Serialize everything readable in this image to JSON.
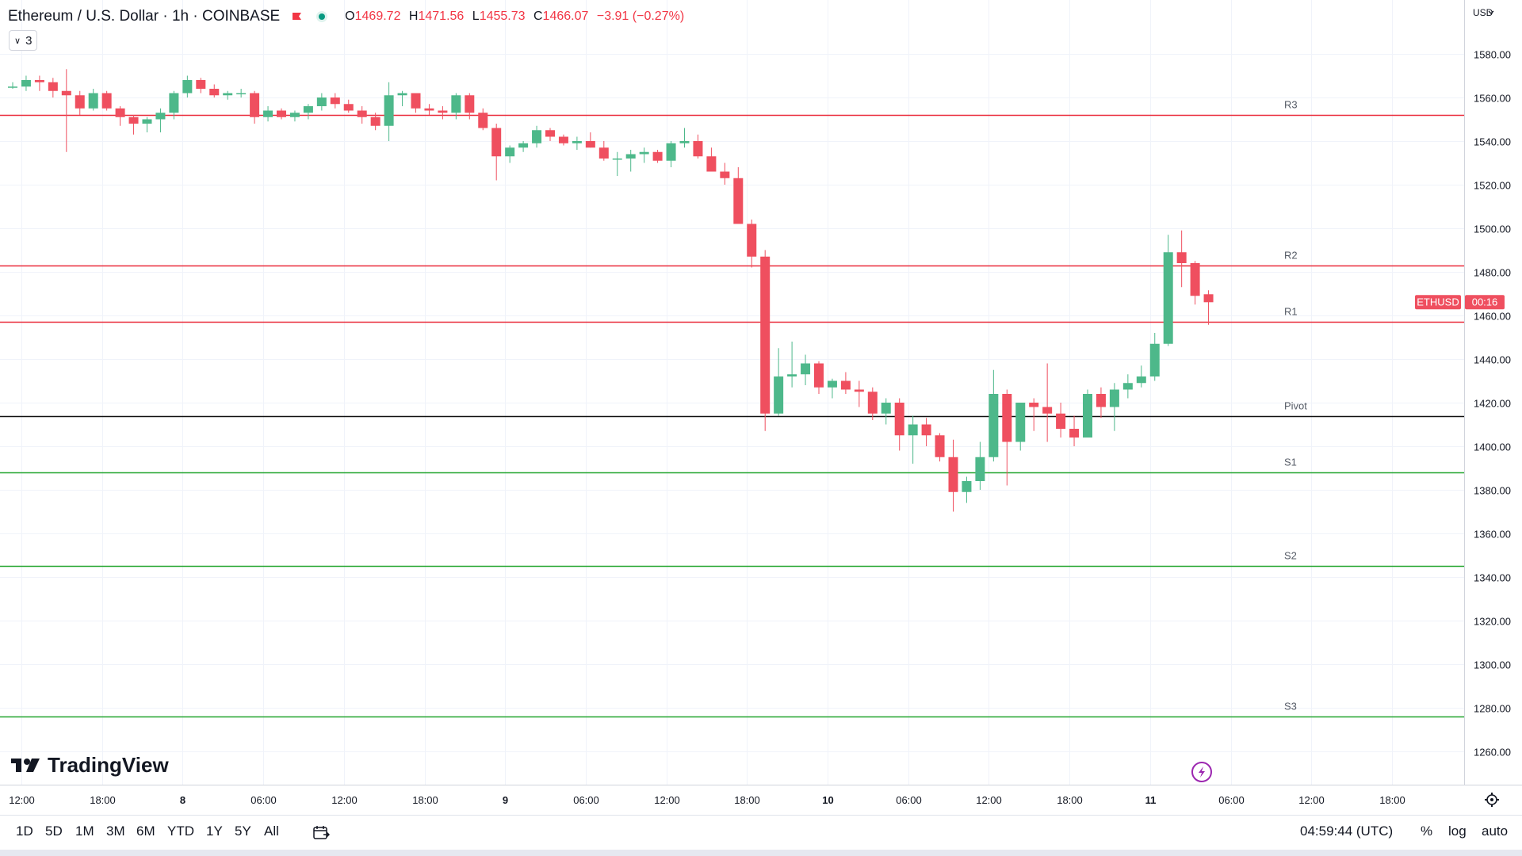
{
  "header": {
    "symbol": "Ethereum / U.S. Dollar · 1h · COINBASE",
    "open_label": "O",
    "open": "1469.72",
    "high_label": "H",
    "high": "1471.56",
    "low_label": "L",
    "low": "1455.73",
    "close_label": "C",
    "close": "1466.07",
    "change": "−3.91 (−0.27%)"
  },
  "indicator_badge": {
    "count": "3"
  },
  "price_scale": {
    "currency": "USD"
  },
  "last_price_tag": {
    "symbol": "ETHUSD",
    "countdown": "00:16"
  },
  "logo": {
    "text": "TradingView"
  },
  "bottom_bar": {
    "ranges": [
      "1D",
      "5D",
      "1M",
      "3M",
      "6M",
      "YTD",
      "1Y",
      "5Y",
      "All"
    ],
    "clock": "04:59:44 (UTC)",
    "percent": "%",
    "log": "log",
    "auto": "auto"
  },
  "colors": {
    "up": "#4db88a",
    "down": "#ef4f5f",
    "resistance": "#ea2a3a",
    "support": "#22a52e",
    "pivot": "#111111"
  },
  "chart_data": {
    "type": "candlestick",
    "timeframe": "1h",
    "y_ticks": [
      1580,
      1560,
      1540,
      1520,
      1500,
      1480,
      1460,
      1440,
      1420,
      1400,
      1380,
      1360,
      1340,
      1320,
      1300,
      1280,
      1260
    ],
    "y_tick_labels": [
      "1580.00",
      "1560.00",
      "1540.00",
      "1520.00",
      "1500.00",
      "1480.00",
      "1460.00",
      "1440.00",
      "1420.00",
      "1400.00",
      "1380.00",
      "1360.00",
      "1340.00",
      "1320.00",
      "1300.00",
      "1280.00",
      "1260.00"
    ],
    "ylim": [
      1250,
      1592
    ],
    "x_tick_labels": [
      "12:00",
      "18:00",
      "8",
      "06:00",
      "12:00",
      "18:00",
      "9",
      "06:00",
      "12:00",
      "18:00",
      "10",
      "06:00",
      "12:00",
      "18:00",
      "11",
      "06:00",
      "12:00",
      "18:00"
    ],
    "x_tick_bold": [
      false,
      false,
      true,
      false,
      false,
      false,
      true,
      false,
      false,
      false,
      true,
      false,
      false,
      false,
      true,
      false,
      false,
      false
    ],
    "x_tick_bar_index": [
      0,
      6,
      12,
      18,
      24,
      30,
      36,
      42,
      48,
      54,
      60,
      66,
      72,
      78,
      84,
      90,
      96,
      102
    ],
    "levels": [
      {
        "label": "R3",
        "value": 1552,
        "kind": "resistance"
      },
      {
        "label": "R2",
        "value": 1483,
        "kind": "resistance"
      },
      {
        "label": "R1",
        "value": 1457,
        "kind": "resistance"
      },
      {
        "label": "Pivot",
        "value": 1414,
        "kind": "pivot"
      },
      {
        "label": "S1",
        "value": 1388,
        "kind": "support"
      },
      {
        "label": "S2",
        "value": 1345,
        "kind": "support"
      },
      {
        "label": "S3",
        "value": 1276,
        "kind": "support"
      }
    ],
    "last_price": 1466.07,
    "candles": [
      [
        1565,
        1567,
        1564,
        1565
      ],
      [
        1565,
        1570,
        1563,
        1568
      ],
      [
        1568,
        1570,
        1563,
        1567
      ],
      [
        1567,
        1569,
        1560,
        1563
      ],
      [
        1563,
        1573,
        1535,
        1561
      ],
      [
        1561,
        1563,
        1552,
        1555
      ],
      [
        1555,
        1564,
        1554,
        1562
      ],
      [
        1562,
        1563,
        1554,
        1555
      ],
      [
        1555,
        1556,
        1547,
        1551
      ],
      [
        1551,
        1552,
        1543,
        1548
      ],
      [
        1548,
        1551,
        1544,
        1550
      ],
      [
        1550,
        1555,
        1544,
        1553
      ],
      [
        1553,
        1563,
        1550,
        1562
      ],
      [
        1562,
        1570,
        1560,
        1568
      ],
      [
        1568,
        1569,
        1562,
        1564
      ],
      [
        1564,
        1566,
        1560,
        1561
      ],
      [
        1561,
        1563,
        1559,
        1562
      ],
      [
        1562,
        1564,
        1560,
        1562
      ],
      [
        1562,
        1563,
        1548,
        1551
      ],
      [
        1551,
        1556,
        1549,
        1554
      ],
      [
        1554,
        1555,
        1550,
        1551
      ],
      [
        1551,
        1554,
        1549,
        1553
      ],
      [
        1553,
        1557,
        1550,
        1556
      ],
      [
        1556,
        1562,
        1554,
        1560
      ],
      [
        1560,
        1562,
        1555,
        1557
      ],
      [
        1557,
        1559,
        1553,
        1554
      ],
      [
        1554,
        1556,
        1548,
        1551
      ],
      [
        1551,
        1553,
        1545,
        1547
      ],
      [
        1547,
        1567,
        1540,
        1561
      ],
      [
        1561,
        1563,
        1556,
        1562
      ],
      [
        1562,
        1562,
        1553,
        1555
      ],
      [
        1555,
        1557,
        1552,
        1554
      ],
      [
        1554,
        1556,
        1550,
        1553
      ],
      [
        1553,
        1562,
        1550,
        1561
      ],
      [
        1561,
        1562,
        1550,
        1553
      ],
      [
        1553,
        1555,
        1545,
        1546
      ],
      [
        1546,
        1548,
        1522,
        1533
      ],
      [
        1533,
        1538,
        1530,
        1537
      ],
      [
        1537,
        1540,
        1535,
        1539
      ],
      [
        1539,
        1547,
        1537,
        1545
      ],
      [
        1545,
        1546,
        1540,
        1542
      ],
      [
        1542,
        1543,
        1538,
        1539
      ],
      [
        1539,
        1542,
        1536,
        1540
      ],
      [
        1540,
        1544,
        1537,
        1537
      ],
      [
        1537,
        1540,
        1531,
        1532
      ],
      [
        1532,
        1535,
        1524,
        1532
      ],
      [
        1532,
        1536,
        1526,
        1534
      ],
      [
        1534,
        1537,
        1530,
        1535
      ],
      [
        1535,
        1536,
        1530,
        1531
      ],
      [
        1531,
        1540,
        1528,
        1539
      ],
      [
        1539,
        1546,
        1537,
        1540
      ],
      [
        1540,
        1543,
        1532,
        1533
      ],
      [
        1533,
        1537,
        1526,
        1526
      ],
      [
        1526,
        1530,
        1520,
        1523
      ],
      [
        1523,
        1528,
        1502,
        1502
      ],
      [
        1502,
        1504,
        1482,
        1487
      ],
      [
        1487,
        1490,
        1407,
        1415
      ],
      [
        1415,
        1445,
        1414,
        1432
      ],
      [
        1432,
        1448,
        1427,
        1433
      ],
      [
        1433,
        1442,
        1428,
        1438
      ],
      [
        1438,
        1439,
        1424,
        1427
      ],
      [
        1427,
        1431,
        1422,
        1430
      ],
      [
        1430,
        1434,
        1424,
        1426
      ],
      [
        1426,
        1430,
        1418,
        1425
      ],
      [
        1425,
        1427,
        1412,
        1415
      ],
      [
        1415,
        1422,
        1410,
        1420
      ],
      [
        1420,
        1422,
        1398,
        1405
      ],
      [
        1405,
        1414,
        1392,
        1410
      ],
      [
        1410,
        1413,
        1400,
        1405
      ],
      [
        1405,
        1406,
        1393,
        1395
      ],
      [
        1395,
        1403,
        1370,
        1379
      ],
      [
        1379,
        1386,
        1374,
        1384
      ],
      [
        1384,
        1402,
        1380,
        1395
      ],
      [
        1395,
        1435,
        1393,
        1424
      ],
      [
        1424,
        1426,
        1382,
        1402
      ],
      [
        1402,
        1420,
        1398,
        1420
      ],
      [
        1420,
        1422,
        1407,
        1418
      ],
      [
        1418,
        1438,
        1402,
        1415
      ],
      [
        1415,
        1420,
        1404,
        1408
      ],
      [
        1408,
        1414,
        1400,
        1404
      ],
      [
        1404,
        1426,
        1404,
        1424
      ],
      [
        1424,
        1427,
        1413,
        1418
      ],
      [
        1418,
        1429,
        1407,
        1426
      ],
      [
        1426,
        1433,
        1422,
        1429
      ],
      [
        1429,
        1437,
        1427,
        1432
      ],
      [
        1432,
        1452,
        1430,
        1447
      ],
      [
        1447,
        1497,
        1446,
        1489
      ],
      [
        1489,
        1499,
        1473,
        1484
      ],
      [
        1484,
        1485,
        1465,
        1469
      ],
      [
        1469.72,
        1471.56,
        1455.73,
        1466.07
      ]
    ]
  }
}
